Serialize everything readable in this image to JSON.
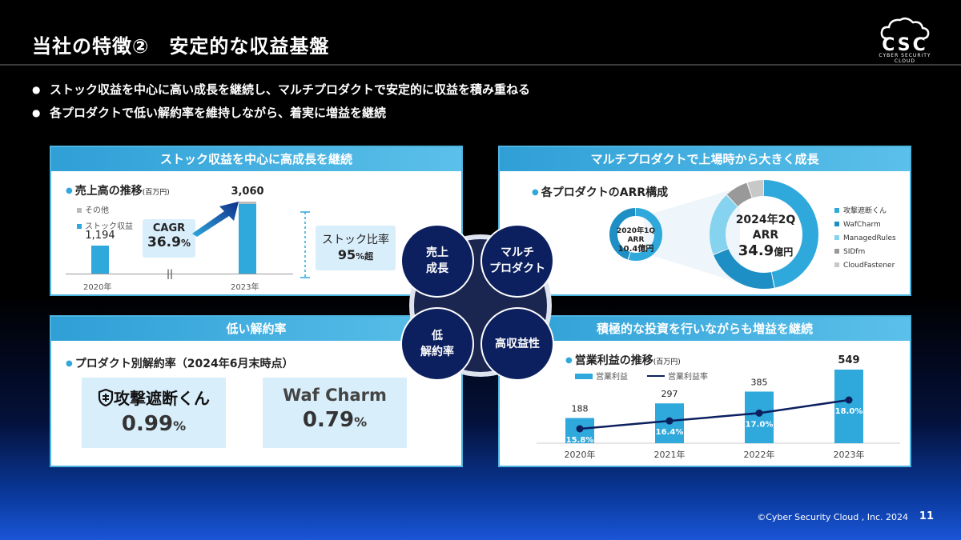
{
  "header": {
    "title": "当社の特徴②　安定的な収益基盤",
    "logo_text": "CSC",
    "logo_sub": "CYBER SECURITY CLOUD"
  },
  "bullets": [
    "ストック収益を中心に高い成長を継続し、マルチプロダクトで安定的に収益を積み重ねる",
    "各プロダクトで低い解約率を維持しながら、着実に増益を継続"
  ],
  "panel_tl": {
    "title": "ストック収益を中心に高成長を継続",
    "subtitle": "売上高の推移",
    "unit": "(百万円)",
    "legend_other": "その他",
    "legend_stock": "ストック収益",
    "cagr_label": "CAGR",
    "cagr_value": "36.9",
    "cagr_unit": "%",
    "break_mark": "||",
    "ratio_label": "ストック比率",
    "ratio_value": "95",
    "ratio_unit": "%超"
  },
  "panel_tr": {
    "title": "マルチプロダクトで上場時から大きく成長",
    "subtitle": "各プロダクトのARR構成",
    "small_label1": "2020年1Q",
    "small_label2": "ARR",
    "small_value": "10.4億円",
    "big_label1": "2024年2Q",
    "big_label2": "ARR",
    "big_value": "34.9",
    "big_unit": "億円"
  },
  "panel_bl": {
    "title": "低い解約率",
    "subtitle": "プロダクト別解約率（2024年6月末時点）",
    "prod1_name": "攻撃遮断くん",
    "prod1_value": "0.99",
    "prod1_unit": "%",
    "prod2_name": "Waf Charm",
    "prod2_value": "0.79",
    "prod2_unit": "%"
  },
  "panel_br": {
    "title": "積極的な投資を行いながらも増益を継続",
    "subtitle": "営業利益の推移",
    "unit": "(百万円)",
    "legend_bar": "営業利益",
    "legend_line": "営業利益率"
  },
  "center": {
    "c1": "売上\n成長",
    "c2": "マルチ\nプロダクト",
    "c3": "低\n解約率",
    "c4": "高収益性"
  },
  "footer": {
    "copyright": "©Cyber Security Cloud , Inc. 2024",
    "page": "11"
  },
  "colors": {
    "accent": "#2fa8dc",
    "navy": "#0c1f5e",
    "light": "#d9eefb"
  },
  "chart_data": [
    {
      "type": "bar",
      "title": "売上高の推移",
      "categories": [
        "2020年",
        "2023年"
      ],
      "series": [
        {
          "name": "ストック収益",
          "values": [
            1194,
            2960
          ]
        },
        {
          "name": "その他",
          "values": [
            0,
            100
          ]
        }
      ],
      "totals": [
        "1,194",
        "3,060"
      ],
      "unit": "百万円"
    },
    {
      "type": "pie",
      "title": "各プロダクトのARR構成",
      "legend": [
        "攻撃遮断くん",
        "WafCharm",
        "ManagedRules",
        "SIDfm",
        "CloudFastener"
      ],
      "colors": [
        "#2fa8dc",
        "#1d8fc4",
        "#85d3ee",
        "#999999",
        "#c8c8c8"
      ],
      "slices_2020_1Q": [
        0.55,
        0.45,
        0,
        0,
        0
      ],
      "slices_2024_2Q": [
        0.47,
        0.22,
        0.19,
        0.07,
        0.05
      ]
    },
    {
      "type": "bar",
      "title": "営業利益の推移",
      "categories": [
        "2020年",
        "2021年",
        "2022年",
        "2023年"
      ],
      "bars": {
        "name": "営業利益",
        "values": [
          188,
          297,
          385,
          549
        ]
      },
      "line": {
        "name": "営業利益率",
        "values": [
          15.8,
          16.4,
          17.0,
          18.0
        ],
        "labels": [
          "15.8%",
          "16.4%",
          "17.0%",
          "18.0%"
        ]
      },
      "unit": "百万円"
    }
  ]
}
